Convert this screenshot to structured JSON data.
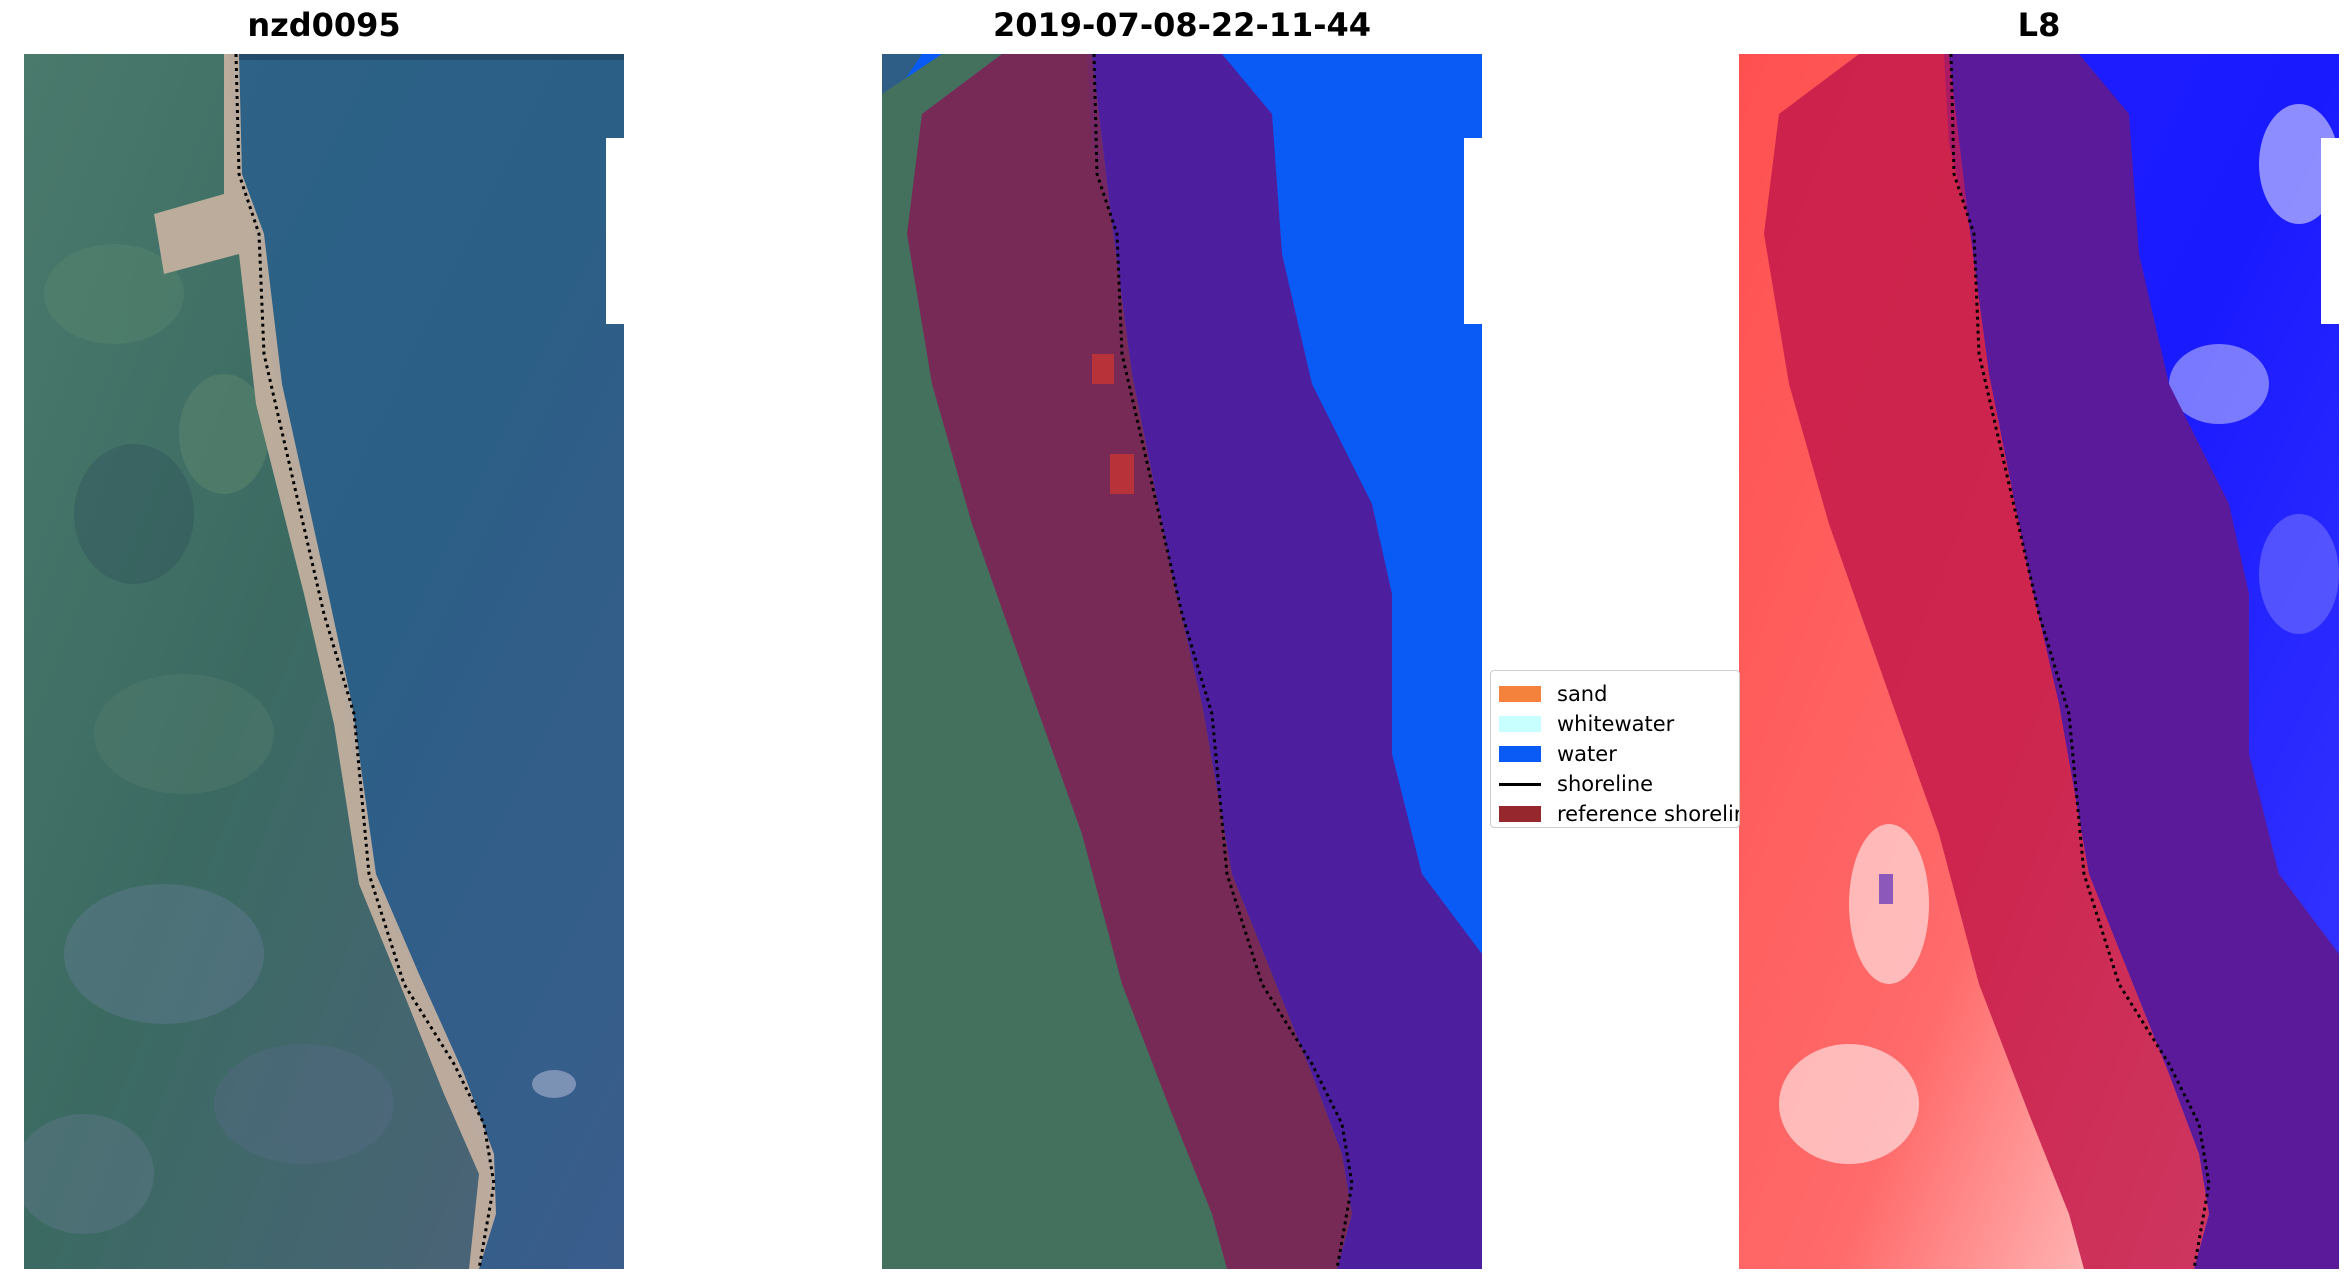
{
  "panels": [
    {
      "title": "nzd0095"
    },
    {
      "title": "2019-07-08-22-11-44"
    },
    {
      "title": "L8"
    }
  ],
  "legend": {
    "items": [
      {
        "label": "sand",
        "color": "#f4823c",
        "kind": "patch"
      },
      {
        "label": "whitewater",
        "color": "#c8ffff",
        "kind": "patch"
      },
      {
        "label": "water",
        "color": "#0a5af5",
        "kind": "patch"
      },
      {
        "label": "shoreline",
        "color": "#000000",
        "kind": "line"
      },
      {
        "label": "reference shoreline",
        "color": "#96282d",
        "kind": "patch"
      }
    ]
  },
  "colors": {
    "ocean": "#2e5e86",
    "land": "#3f6a64",
    "beach": "#c9b2a1",
    "classified_water": "#0a5af5",
    "buffer_water": "#4d1f9e",
    "buffer_land": "#7d2456",
    "index_negative": "#ff4a4a",
    "index_positive": "#1010ff"
  }
}
